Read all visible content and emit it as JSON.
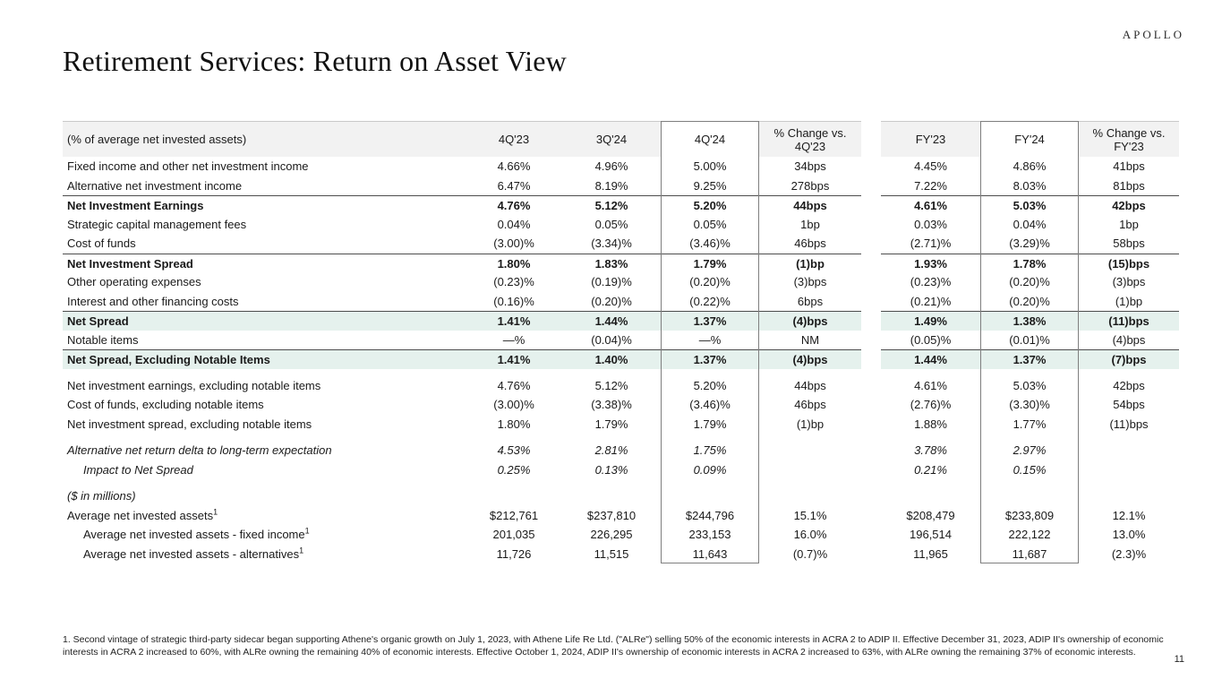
{
  "brand": {
    "logo": "APOLLO"
  },
  "page": {
    "title": "Retirement Services: Return on Asset View",
    "page_number": "11",
    "footnote": "1. Second vintage of strategic third-party sidecar began supporting Athene's organic growth on July 1, 2023, with Athene Life Re Ltd. (\"ALRe\") selling 50% of the economic interests in ACRA 2 to ADIP II. Effective December 31, 2023, ADIP II's ownership of economic interests in ACRA 2 increased to 60%, with ALRe owning the remaining 40% of economic interests. Effective October 1, 2024, ADIP II's ownership of economic interests in ACRA 2 increased to 63%, with ALRe owning the remaining 37% of economic interests."
  },
  "colors": {
    "header_bg": "#f2f2f2",
    "highlight_green": "#e5f1ed",
    "rule": "#4d4d4d",
    "column_box_border": "#7f7f7f"
  },
  "table": {
    "label_header": "(% of average net invested assets)",
    "columns": [
      "4Q'23",
      "3Q'24",
      "4Q'24",
      "% Change vs. 4Q'23",
      "FY'23",
      "FY'24",
      "% Change vs. FY'23"
    ],
    "boxed_columns": [
      "4Q'24",
      "FY'24"
    ],
    "rows": [
      {
        "label": "Fixed income and other net investment income",
        "values": [
          "4.66%",
          "4.96%",
          "5.00%",
          "34bps",
          "4.45%",
          "4.86%",
          "41bps"
        ]
      },
      {
        "label": "Alternative net investment income",
        "values": [
          "6.47%",
          "8.19%",
          "9.25%",
          "278bps",
          "7.22%",
          "8.03%",
          "81bps"
        ]
      },
      {
        "label": "Net Investment Earnings",
        "bold": true,
        "rule_above": true,
        "values": [
          "4.76%",
          "5.12%",
          "5.20%",
          "44bps",
          "4.61%",
          "5.03%",
          "42bps"
        ]
      },
      {
        "label": "Strategic capital management fees",
        "values": [
          "0.04%",
          "0.05%",
          "0.05%",
          "1bp",
          "0.03%",
          "0.04%",
          "1bp"
        ]
      },
      {
        "label": "Cost of funds",
        "values": [
          "(3.00)%",
          "(3.34)%",
          "(3.46)%",
          "46bps",
          "(2.71)%",
          "(3.29)%",
          "58bps"
        ]
      },
      {
        "label": "Net Investment Spread",
        "bold": true,
        "rule_above": true,
        "values": [
          "1.80%",
          "1.83%",
          "1.79%",
          "(1)bp",
          "1.93%",
          "1.78%",
          "(15)bps"
        ]
      },
      {
        "label": "Other operating expenses",
        "values": [
          "(0.23)%",
          "(0.19)%",
          "(0.20)%",
          "(3)bps",
          "(0.23)%",
          "(0.20)%",
          "(3)bps"
        ]
      },
      {
        "label": "Interest and other financing costs",
        "values": [
          "(0.16)%",
          "(0.20)%",
          "(0.22)%",
          "6bps",
          "(0.21)%",
          "(0.20)%",
          "(1)bp"
        ]
      },
      {
        "label": "Net Spread",
        "bold": true,
        "rule_above": true,
        "green": true,
        "values": [
          "1.41%",
          "1.44%",
          "1.37%",
          "(4)bps",
          "1.49%",
          "1.38%",
          "(11)bps"
        ]
      },
      {
        "label": "Notable items",
        "values": [
          "—%",
          "(0.04)%",
          "—%",
          "NM",
          "(0.05)%",
          "(0.01)%",
          "(4)bps"
        ]
      },
      {
        "label": "Net Spread, Excluding Notable Items",
        "bold": true,
        "rule_above": true,
        "green": true,
        "values": [
          "1.41%",
          "1.40%",
          "1.37%",
          "(4)bps",
          "1.44%",
          "1.37%",
          "(7)bps"
        ]
      },
      {
        "label": "Net investment earnings, excluding notable items",
        "spacer_before": true,
        "values": [
          "4.76%",
          "5.12%",
          "5.20%",
          "44bps",
          "4.61%",
          "5.03%",
          "42bps"
        ]
      },
      {
        "label": "Cost of funds, excluding notable items",
        "values": [
          "(3.00)%",
          "(3.38)%",
          "(3.46)%",
          "46bps",
          "(2.76)%",
          "(3.30)%",
          "54bps"
        ]
      },
      {
        "label": "Net investment spread, excluding notable items",
        "values": [
          "1.80%",
          "1.79%",
          "1.79%",
          "(1)bp",
          "1.88%",
          "1.77%",
          "(11)bps"
        ]
      },
      {
        "label": "Alternative net return delta to long-term expectation",
        "italic": true,
        "spacer_before": true,
        "values": [
          "4.53%",
          "2.81%",
          "1.75%",
          "",
          "3.78%",
          "2.97%",
          ""
        ]
      },
      {
        "label": "Impact to Net Spread",
        "italic": true,
        "indent": 1,
        "values": [
          "0.25%",
          "0.13%",
          "0.09%",
          "",
          "0.21%",
          "0.15%",
          ""
        ]
      },
      {
        "label": "($ in millions)",
        "italic": true,
        "spacer_before": true,
        "values": [
          "",
          "",
          "",
          "",
          "",
          "",
          ""
        ]
      },
      {
        "label": "Average net invested assets",
        "sup": "1",
        "values": [
          "$212,761",
          "$237,810",
          "$244,796",
          "15.1%",
          "$208,479",
          "$233,809",
          "12.1%"
        ]
      },
      {
        "label": "Average net invested assets - fixed income",
        "sup": "1",
        "indent": 1,
        "values": [
          "201,035",
          "226,295",
          "233,153",
          "16.0%",
          "196,514",
          "222,122",
          "13.0%"
        ]
      },
      {
        "label": "Average net invested assets - alternatives",
        "sup": "1",
        "indent": 1,
        "values": [
          "11,726",
          "11,515",
          "11,643",
          "(0.7)%",
          "11,965",
          "11,687",
          "(2.3)%"
        ]
      }
    ]
  }
}
